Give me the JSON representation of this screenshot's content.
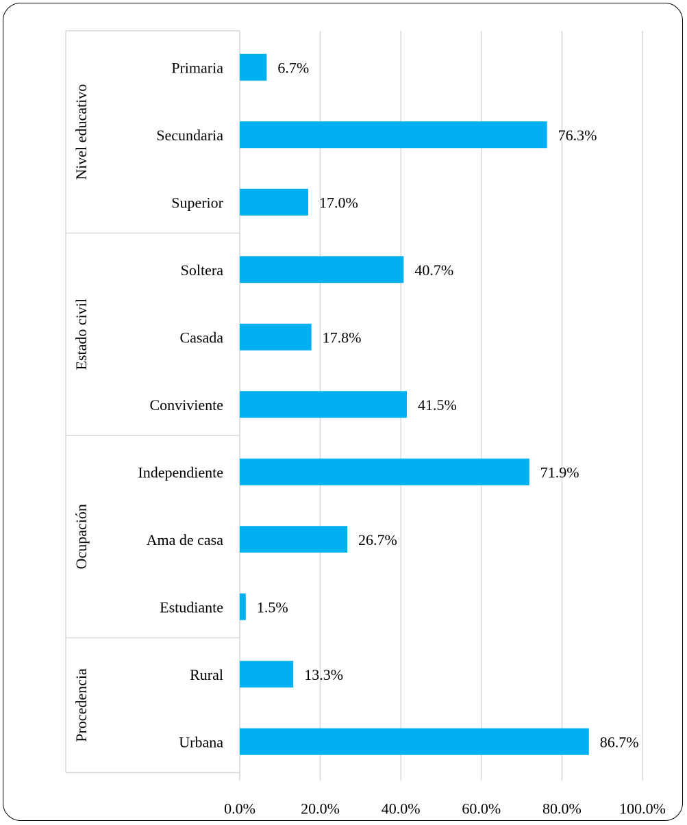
{
  "chart_data": {
    "type": "bar",
    "orientation": "horizontal",
    "title": "",
    "xlabel": "",
    "ylabel": "",
    "xlim": [
      0,
      100
    ],
    "x_ticks": [
      0,
      20,
      40,
      60,
      80,
      100
    ],
    "tick_labels": [
      "0.0%",
      "20.0%",
      "40.0%",
      "60.0%",
      "80.0%",
      "100.0%"
    ],
    "grid": true,
    "legend": "none",
    "bar_color": "#00B0F0",
    "groups": [
      {
        "label": "Nivel educativo",
        "categories": [
          "Primaria",
          "Secundaria",
          "Superior"
        ]
      },
      {
        "label": "Estado civil",
        "categories": [
          "Soltera",
          "Casada",
          "Conviviente"
        ]
      },
      {
        "label": "Ocupación",
        "categories": [
          "Independiente",
          "Ama de casa",
          "Estudiante"
        ]
      },
      {
        "label": "Procedencia",
        "categories": [
          "Rural",
          "Urbana"
        ]
      }
    ],
    "categories": [
      "Primaria",
      "Secundaria",
      "Superior",
      "Soltera",
      "Casada",
      "Conviviente",
      "Independiente",
      "Ama de casa",
      "Estudiante",
      "Rural",
      "Urbana"
    ],
    "values": [
      6.7,
      76.3,
      17.0,
      40.7,
      17.8,
      41.5,
      71.9,
      26.7,
      1.5,
      13.3,
      86.7
    ],
    "value_labels": [
      "6.7%",
      "76.3%",
      "17.0%",
      "40.7%",
      "17.8%",
      "41.5%",
      "71.9%",
      "26.7%",
      "1.5%",
      "13.3%",
      "86.7%"
    ]
  }
}
